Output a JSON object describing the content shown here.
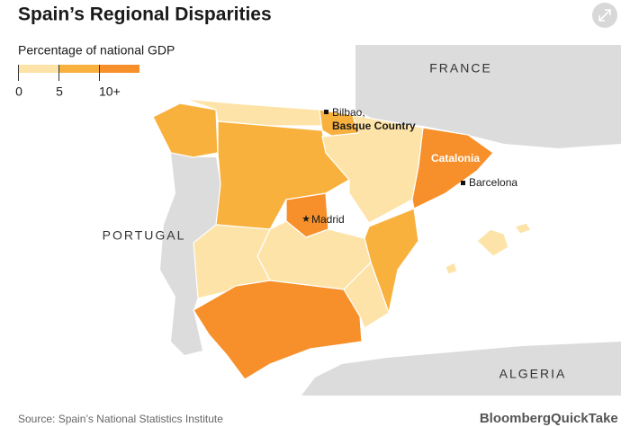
{
  "header": {
    "title": "Spain’s Regional Disparities"
  },
  "legend": {
    "title": "Percentage of national GDP",
    "ticks": [
      "0",
      "5",
      "10+"
    ]
  },
  "map_labels": {
    "france": "FRANCE",
    "portugal": "PORTUGAL",
    "algeria": "ALGERIA",
    "bilbao": "Bilbao,",
    "basque_country": "Basque Country",
    "catalonia": "Catalonia",
    "barcelona": "Barcelona",
    "madrid": "Madrid"
  },
  "footer": {
    "source": "Source: Spain’s National Statistics Institute",
    "brand": "Bloomberg",
    "brand_suffix": "QuickTake"
  }
}
